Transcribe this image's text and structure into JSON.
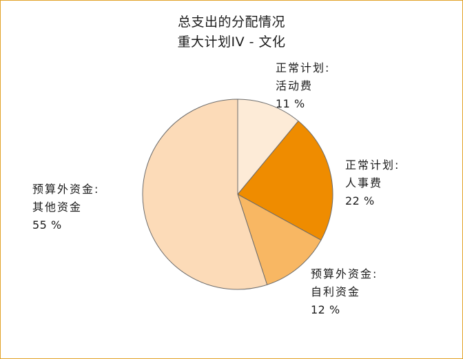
{
  "chart_data": {
    "type": "pie",
    "title": "总支出的分配情况",
    "subtitle": "重大计划IV - 文化",
    "slices": [
      {
        "line1": "正常计划:",
        "line2": "活动费",
        "value": 11,
        "pct_label": "11 %",
        "color": "#fdebd7"
      },
      {
        "line1": "正常计划:",
        "line2": "人事费",
        "value": 22,
        "pct_label": "22 %",
        "color": "#ef8c00"
      },
      {
        "line1": "预算外资金:",
        "line2": "自利资金",
        "value": 12,
        "pct_label": "12 %",
        "color": "#f8b763"
      },
      {
        "line1": "预算外资金:",
        "line2": "其他资金",
        "value": 55,
        "pct_label": "55 %",
        "color": "#fcdbb8"
      }
    ],
    "start_angle": "12 o'clock",
    "direction": "clockwise"
  },
  "colors": {
    "frame_border": "#e2a227",
    "slice_stroke": "#6b6b6b"
  }
}
